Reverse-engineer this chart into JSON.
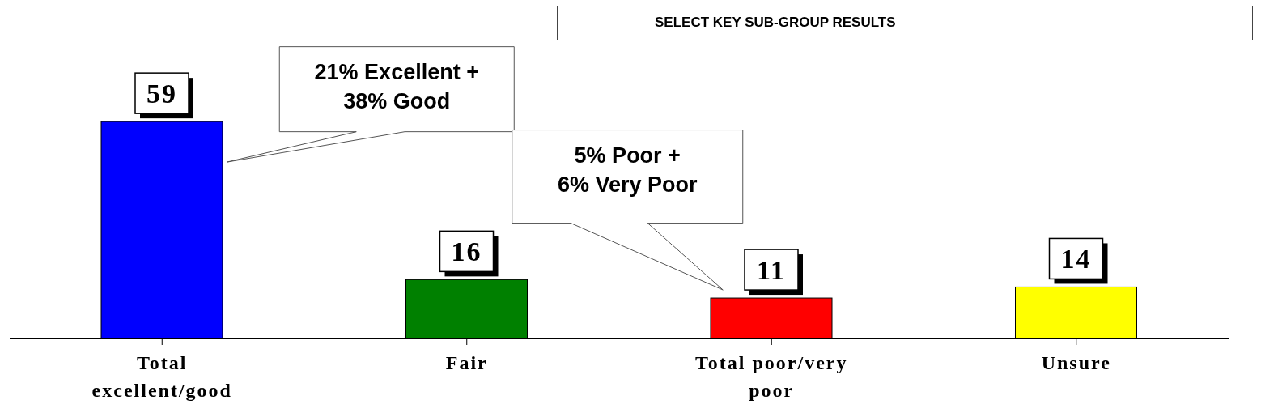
{
  "chart_data": {
    "type": "bar",
    "title": "SELECT KEY SUB-GROUP RESULTS",
    "categories": [
      "Total excellent/good",
      "Fair",
      "Total poor/very poor",
      "Unsure"
    ],
    "values": [
      59,
      16,
      11,
      14
    ],
    "colors": [
      "#0000ff",
      "#008000",
      "#ff0000",
      "#ffff00"
    ],
    "data_labels": true,
    "grid": false,
    "legend": false,
    "annotations": [
      "21% Excellent +\n38% Good",
      "5% Poor +\n6% Very Poor"
    ]
  }
}
